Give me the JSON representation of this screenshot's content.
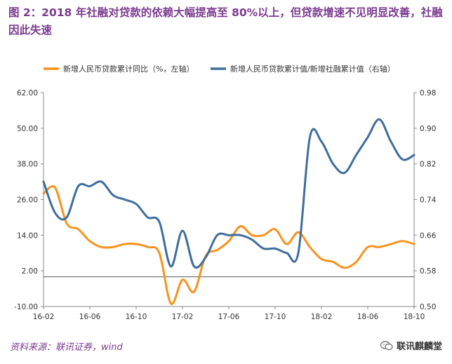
{
  "header": {
    "title": "图 2：2018 年社融对贷款的依赖大幅提高至 80%以上，但贷款增速不见明显改善，社融因此失速"
  },
  "footer": {
    "source": "资料来源：联讯证券，wind",
    "watermark": "联讯麒麟堂"
  },
  "icons": {
    "watermark": "wechat-icon"
  },
  "colors": {
    "left_series": "#f7931e",
    "right_series": "#3f6d9c",
    "title": "#7a3b8f"
  },
  "chart_data": {
    "type": "line",
    "grid": false,
    "legend_position": "top",
    "x_tick_labels": [
      "16-02",
      "16-06",
      "16-10",
      "17-02",
      "17-06",
      "17-10",
      "18-02",
      "18-06",
      "18-10"
    ],
    "left_axis": {
      "ylim": [
        -10,
        62
      ],
      "ticks": [
        "-10.00",
        "2.00",
        "14.00",
        "26.00",
        "38.00",
        "50.00",
        "62.00"
      ]
    },
    "right_axis": {
      "ylim": [
        0.5,
        0.98
      ],
      "ticks": [
        "0.50",
        "0.58",
        "0.66",
        "0.74",
        "0.82",
        "0.90",
        "0.98"
      ]
    },
    "series": [
      {
        "name": "新增人民币贷款累计同比（%，左轴）",
        "axis": "left",
        "color": "#f7931e",
        "x": [
          "16-02",
          "16-03",
          "16-04",
          "16-05",
          "16-06",
          "16-07",
          "16-08",
          "16-09",
          "16-10",
          "16-11",
          "16-12",
          "17-01",
          "17-02",
          "17-03",
          "17-04",
          "17-05",
          "17-06",
          "17-07",
          "17-08",
          "17-09",
          "17-10",
          "17-11",
          "17-12",
          "18-01",
          "18-02",
          "18-03",
          "18-04",
          "18-05",
          "18-06",
          "18-07",
          "18-08",
          "18-09",
          "18-10"
        ],
        "y": [
          28,
          30,
          18,
          16,
          12,
          10,
          10,
          11,
          11,
          10,
          8,
          -9,
          -1,
          -5,
          7,
          9,
          12,
          17,
          14,
          14,
          16,
          11,
          15,
          10,
          6,
          5,
          3,
          5,
          10,
          10,
          11,
          12,
          11
        ]
      },
      {
        "name": "新增人民币贷款累计值/新增社融累计值（右轴）",
        "axis": "right",
        "color": "#3f6d9c",
        "x": [
          "16-02",
          "16-03",
          "16-04",
          "16-05",
          "16-06",
          "16-07",
          "16-08",
          "16-09",
          "16-10",
          "16-11",
          "16-12",
          "17-01",
          "17-02",
          "17-03",
          "17-04",
          "17-05",
          "17-06",
          "17-07",
          "17-08",
          "17-09",
          "17-10",
          "17-11",
          "17-12",
          "18-01",
          "18-02",
          "18-03",
          "18-04",
          "18-05",
          "18-06",
          "18-07",
          "18-08",
          "18-09",
          "18-10"
        ],
        "y": [
          0.78,
          0.71,
          0.7,
          0.77,
          0.77,
          0.78,
          0.75,
          0.74,
          0.73,
          0.7,
          0.69,
          0.59,
          0.67,
          0.59,
          0.61,
          0.66,
          0.66,
          0.66,
          0.65,
          0.63,
          0.63,
          0.62,
          0.62,
          0.88,
          0.87,
          0.82,
          0.8,
          0.84,
          0.88,
          0.92,
          0.87,
          0.83,
          0.84
        ]
      }
    ]
  }
}
